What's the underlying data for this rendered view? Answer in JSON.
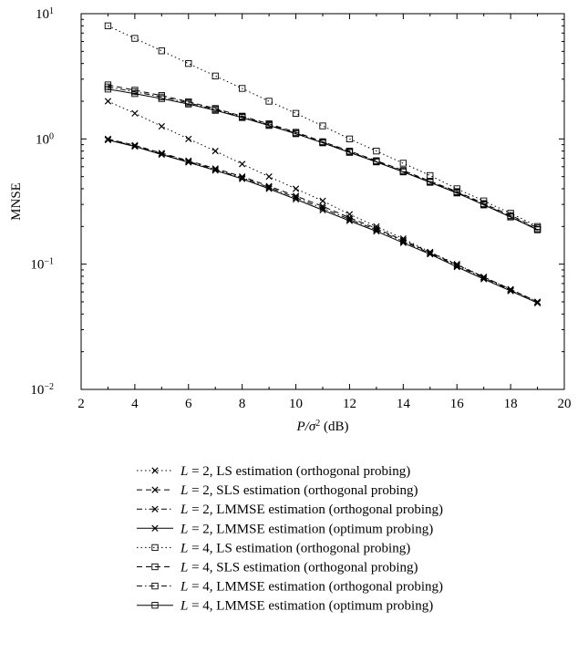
{
  "chart_data": {
    "type": "line",
    "title": "",
    "xlabel": "P/σ² (dB)",
    "xlabel_parts": {
      "pre": "P/σ",
      "sup": "2",
      "post": " (dB)"
    },
    "ylabel": "MNSE",
    "xlim": [
      2,
      20
    ],
    "ylim": [
      0.01,
      10
    ],
    "yscale": "log",
    "grid": false,
    "legend_position": "below",
    "xticks": [
      "2",
      "4",
      "6",
      "8",
      "10",
      "12",
      "14",
      "16",
      "18",
      "20"
    ],
    "yticks": [
      {
        "base": "10",
        "exp": "−2"
      },
      {
        "base": "10",
        "exp": "−1"
      },
      {
        "base": "10",
        "exp": "0"
      },
      {
        "base": "10",
        "exp": "1"
      }
    ],
    "x": [
      3,
      4,
      5,
      6,
      7,
      8,
      9,
      10,
      11,
      12,
      13,
      14,
      15,
      16,
      17,
      18,
      19
    ],
    "series": [
      {
        "name": "L = 2, LS estimation (orthogonal probing)",
        "L": "L",
        "rest": " = 2, LS estimation (orthogonal probing)",
        "marker": "x",
        "dash": "dotted",
        "values": [
          2.0,
          1.6,
          1.26,
          1.0,
          0.8,
          0.63,
          0.5,
          0.4,
          0.32,
          0.25,
          0.2,
          0.16,
          0.125,
          0.1,
          0.079,
          0.063,
          0.05
        ]
      },
      {
        "name": "L = 2, SLS estimation (orthogonal probing)",
        "L": "L",
        "rest": " = 2, SLS estimation (orthogonal probing)",
        "marker": "x",
        "dash": "dashed",
        "values": [
          1.0,
          0.89,
          0.77,
          0.67,
          0.58,
          0.5,
          0.42,
          0.35,
          0.29,
          0.235,
          0.193,
          0.155,
          0.124,
          0.099,
          0.079,
          0.063,
          0.05
        ]
      },
      {
        "name": "L = 2, LMMSE estimation (orthogonal probing)",
        "L": "L",
        "rest": " = 2, LMMSE estimation (orthogonal probing)",
        "marker": "x",
        "dash": "dashdot",
        "values": [
          0.99,
          0.88,
          0.76,
          0.66,
          0.57,
          0.49,
          0.41,
          0.34,
          0.28,
          0.228,
          0.188,
          0.152,
          0.122,
          0.097,
          0.078,
          0.062,
          0.049
        ]
      },
      {
        "name": "L = 2, LMMSE estimation (optimum probing)",
        "L": "L",
        "rest": " = 2, LMMSE estimation (optimum probing)",
        "marker": "x",
        "dash": "solid",
        "values": [
          0.98,
          0.87,
          0.75,
          0.65,
          0.56,
          0.48,
          0.4,
          0.33,
          0.27,
          0.222,
          0.183,
          0.148,
          0.12,
          0.095,
          0.076,
          0.061,
          0.049
        ]
      },
      {
        "name": "L = 4, LS estimation (orthogonal probing)",
        "L": "L",
        "rest": " = 4, LS estimation (orthogonal probing)",
        "marker": "square",
        "dash": "dotted",
        "values": [
          8.0,
          6.35,
          5.05,
          4.0,
          3.18,
          2.53,
          2.0,
          1.6,
          1.27,
          1.0,
          0.8,
          0.64,
          0.51,
          0.4,
          0.32,
          0.255,
          0.2
        ]
      },
      {
        "name": "L = 4, SLS estimation (orthogonal probing)",
        "L": "L",
        "rest": " = 4, SLS estimation (orthogonal probing)",
        "marker": "square",
        "dash": "dashed",
        "values": [
          2.7,
          2.45,
          2.22,
          1.98,
          1.75,
          1.52,
          1.32,
          1.13,
          0.95,
          0.8,
          0.67,
          0.56,
          0.46,
          0.38,
          0.305,
          0.245,
          0.195
        ]
      },
      {
        "name": "L = 4, LMMSE estimation (orthogonal probing)",
        "L": "L",
        "rest": " = 4, LMMSE estimation (orthogonal probing)",
        "marker": "square",
        "dash": "dashdot",
        "values": [
          2.6,
          2.38,
          2.16,
          1.94,
          1.72,
          1.5,
          1.3,
          1.11,
          0.94,
          0.79,
          0.66,
          0.55,
          0.455,
          0.375,
          0.3,
          0.24,
          0.19
        ]
      },
      {
        "name": "L = 4, LMMSE estimation (optimum probing)",
        "L": "L",
        "rest": " = 4, LMMSE estimation (optimum probing)",
        "marker": "square",
        "dash": "solid",
        "values": [
          2.5,
          2.3,
          2.1,
          1.9,
          1.69,
          1.48,
          1.28,
          1.1,
          0.93,
          0.78,
          0.655,
          0.545,
          0.45,
          0.37,
          0.297,
          0.238,
          0.188
        ]
      }
    ]
  }
}
